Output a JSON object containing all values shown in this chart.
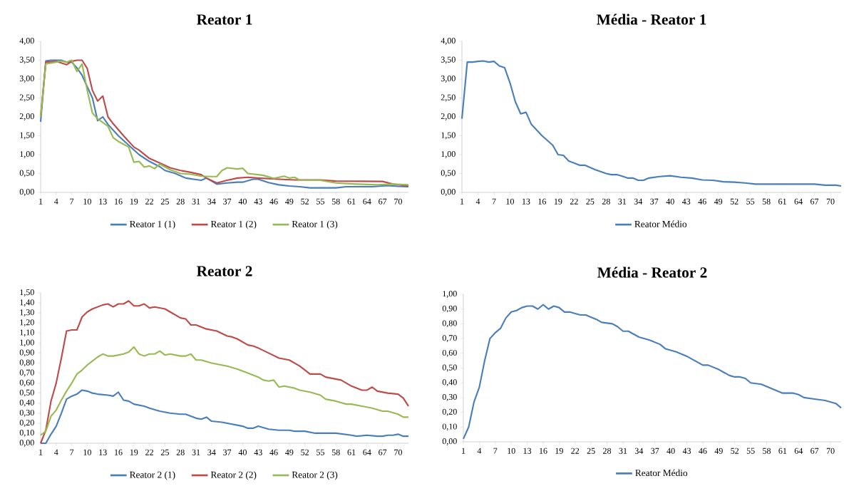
{
  "chart_data": [
    {
      "type": "line",
      "title": "Reator 1",
      "xlim": [
        1,
        72
      ],
      "xticks": [
        1,
        4,
        7,
        10,
        13,
        16,
        19,
        22,
        25,
        28,
        31,
        34,
        37,
        40,
        43,
        46,
        49,
        52,
        55,
        58,
        61,
        64,
        67,
        70
      ],
      "ylim": [
        0,
        4
      ],
      "yticks": [
        {
          "value": 0,
          "label": "0,00"
        },
        {
          "value": 0.5,
          "label": "0,50"
        },
        {
          "value": 1,
          "label": "1,00"
        },
        {
          "value": 1.5,
          "label": "1,50"
        },
        {
          "value": 2,
          "label": "2,00"
        },
        {
          "value": 2.5,
          "label": "2,50"
        },
        {
          "value": 3,
          "label": "3,00"
        },
        {
          "value": 3.5,
          "label": "3,50"
        },
        {
          "value": 4,
          "label": "4,00"
        }
      ],
      "legend": "bottom",
      "series": [
        {
          "name": "Reator 1 (1)",
          "color": "#4a7ebb",
          "x": [
            1,
            2,
            3,
            4,
            5,
            6,
            7,
            8,
            9,
            10,
            11,
            12,
            13,
            14,
            16,
            18,
            20,
            22,
            24,
            25,
            27,
            29,
            31,
            32,
            33,
            35,
            37,
            39,
            40,
            42,
            43,
            45,
            47,
            49,
            51,
            53,
            58,
            60,
            65,
            68,
            70,
            72
          ],
          "values": [
            1.87,
            3.48,
            3.5,
            3.5,
            3.5,
            3.45,
            3.45,
            3.3,
            3.1,
            2.8,
            2.5,
            1.9,
            2.0,
            1.8,
            1.5,
            1.25,
            1.0,
            0.82,
            0.68,
            0.58,
            0.5,
            0.38,
            0.34,
            0.32,
            0.38,
            0.22,
            0.25,
            0.27,
            0.27,
            0.35,
            0.35,
            0.26,
            0.2,
            0.17,
            0.15,
            0.12,
            0.12,
            0.15,
            0.15,
            0.18,
            0.16,
            0.15
          ]
        },
        {
          "name": "Reator 1 (2)",
          "color": "#be4b48",
          "x": [
            1,
            2,
            4,
            6,
            7,
            8,
            9,
            10,
            11,
            12,
            13,
            14,
            15,
            17,
            19,
            20,
            22,
            24,
            26,
            28,
            30,
            32,
            33,
            35,
            37,
            39,
            41,
            43,
            47,
            50,
            55,
            58,
            67,
            69,
            72
          ],
          "values": [
            2.0,
            3.45,
            3.47,
            3.38,
            3.47,
            3.5,
            3.5,
            3.28,
            2.7,
            2.42,
            2.55,
            2.0,
            1.82,
            1.5,
            1.2,
            1.12,
            0.9,
            0.78,
            0.65,
            0.58,
            0.53,
            0.47,
            0.38,
            0.25,
            0.32,
            0.38,
            0.4,
            0.38,
            0.35,
            0.33,
            0.33,
            0.3,
            0.29,
            0.22,
            0.17
          ]
        },
        {
          "name": "Reator 1 (3)",
          "color": "#98b954",
          "x": [
            1,
            2,
            4,
            5,
            6,
            7,
            8,
            9,
            10,
            11,
            12,
            13,
            14,
            15,
            16,
            18,
            19,
            20,
            21,
            22,
            23,
            24,
            26,
            28,
            30,
            32,
            34,
            35,
            36,
            37,
            39,
            40,
            41,
            43,
            44,
            46,
            48,
            49,
            50,
            51,
            55,
            58,
            62,
            66,
            69,
            72
          ],
          "values": [
            2.0,
            3.4,
            3.45,
            3.48,
            3.45,
            3.5,
            3.2,
            3.4,
            2.7,
            2.1,
            1.95,
            1.85,
            1.75,
            1.45,
            1.35,
            1.2,
            0.8,
            0.82,
            0.67,
            0.7,
            0.63,
            0.75,
            0.6,
            0.5,
            0.48,
            0.43,
            0.42,
            0.42,
            0.58,
            0.65,
            0.62,
            0.64,
            0.5,
            0.47,
            0.45,
            0.37,
            0.43,
            0.38,
            0.4,
            0.33,
            0.32,
            0.25,
            0.22,
            0.2,
            0.22,
            0.2
          ]
        }
      ]
    },
    {
      "type": "line",
      "title": "Média - Reator 1",
      "xlim": [
        1,
        72
      ],
      "xticks": [
        1,
        4,
        7,
        10,
        13,
        16,
        19,
        22,
        25,
        28,
        31,
        34,
        37,
        40,
        43,
        46,
        49,
        52,
        55,
        58,
        61,
        64,
        67,
        70
      ],
      "ylim": [
        0,
        4
      ],
      "yticks": [
        {
          "value": 0,
          "label": "0,00"
        },
        {
          "value": 0.5,
          "label": "0,50"
        },
        {
          "value": 1,
          "label": "1,00"
        },
        {
          "value": 1.5,
          "label": "1,50"
        },
        {
          "value": 2,
          "label": "2,00"
        },
        {
          "value": 2.5,
          "label": "2,50"
        },
        {
          "value": 3,
          "label": "3,00"
        },
        {
          "value": 3.5,
          "label": "3,50"
        },
        {
          "value": 4,
          "label": "4,00"
        }
      ],
      "legend": "bottom",
      "series": [
        {
          "name": "Reator Médio",
          "color": "#4a7ebb",
          "x": [
            1,
            2,
            3,
            4,
            5,
            6,
            7,
            8,
            9,
            10,
            11,
            12,
            13,
            14,
            16,
            18,
            19,
            20,
            21,
            22,
            23,
            24,
            26,
            28,
            29,
            30,
            31,
            32,
            33,
            34,
            35,
            36,
            38,
            40,
            42,
            44,
            46,
            48,
            50,
            52,
            54,
            56,
            67,
            69,
            71,
            72
          ],
          "values": [
            1.95,
            3.45,
            3.45,
            3.47,
            3.48,
            3.45,
            3.47,
            3.35,
            3.3,
            2.9,
            2.4,
            2.08,
            2.12,
            1.8,
            1.5,
            1.25,
            1.0,
            0.98,
            0.83,
            0.78,
            0.72,
            0.72,
            0.6,
            0.5,
            0.47,
            0.47,
            0.43,
            0.38,
            0.38,
            0.32,
            0.32,
            0.38,
            0.42,
            0.44,
            0.4,
            0.38,
            0.33,
            0.32,
            0.28,
            0.27,
            0.25,
            0.22,
            0.22,
            0.19,
            0.19,
            0.17
          ]
        }
      ]
    },
    {
      "type": "line",
      "title": "Reator 2",
      "xlim": [
        1,
        72
      ],
      "xticks": [
        1,
        4,
        7,
        10,
        13,
        16,
        19,
        22,
        25,
        28,
        31,
        34,
        37,
        40,
        43,
        46,
        49,
        52,
        55,
        58,
        61,
        64,
        67,
        70
      ],
      "ylim": [
        0,
        1.5
      ],
      "yticks": [
        {
          "value": 0,
          "label": "0,00"
        },
        {
          "value": 0.1,
          "label": "0,10"
        },
        {
          "value": 0.2,
          "label": "0,20"
        },
        {
          "value": 0.3,
          "label": "0,30"
        },
        {
          "value": 0.4,
          "label": "0,40"
        },
        {
          "value": 0.5,
          "label": "0,50"
        },
        {
          "value": 0.6,
          "label": "0,60"
        },
        {
          "value": 0.7,
          "label": "0,70"
        },
        {
          "value": 0.8,
          "label": "0,80"
        },
        {
          "value": 0.9,
          "label": "0,90"
        },
        {
          "value": 1,
          "label": "1,00"
        },
        {
          "value": 1.1,
          "label": "1,10"
        },
        {
          "value": 1.2,
          "label": "1,20"
        },
        {
          "value": 1.3,
          "label": "1,30"
        },
        {
          "value": 1.4,
          "label": "1,40"
        },
        {
          "value": 1.5,
          "label": "1,50"
        }
      ],
      "legend": "bottom",
      "series": [
        {
          "name": "Reator 2 (1)",
          "color": "#4a7ebb",
          "x": [
            1,
            2,
            3,
            4,
            5,
            6,
            7,
            8,
            9,
            10,
            11,
            12,
            14,
            15,
            16,
            17,
            18,
            19,
            21,
            22,
            24,
            26,
            28,
            29,
            31,
            32,
            33,
            34,
            36,
            38,
            40,
            41,
            42,
            43,
            45,
            47,
            49,
            50,
            52,
            54,
            58,
            61,
            62,
            64,
            66,
            67,
            68,
            69,
            70,
            71,
            72
          ],
          "values": [
            0,
            0,
            0.09,
            0.17,
            0.3,
            0.44,
            0.47,
            0.49,
            0.53,
            0.52,
            0.5,
            0.49,
            0.48,
            0.47,
            0.51,
            0.43,
            0.42,
            0.39,
            0.37,
            0.35,
            0.32,
            0.3,
            0.29,
            0.29,
            0.25,
            0.24,
            0.26,
            0.22,
            0.21,
            0.19,
            0.17,
            0.15,
            0.15,
            0.17,
            0.14,
            0.13,
            0.13,
            0.12,
            0.12,
            0.1,
            0.1,
            0.08,
            0.07,
            0.08,
            0.07,
            0.07,
            0.08,
            0.08,
            0.09,
            0.07,
            0.07
          ]
        },
        {
          "name": "Reator 2 (2)",
          "color": "#be4b48",
          "x": [
            1,
            2,
            3,
            4,
            5,
            6,
            7,
            8,
            9,
            10,
            11,
            12,
            13,
            14,
            15,
            16,
            17,
            18,
            19,
            20,
            21,
            22,
            23,
            25,
            26,
            28,
            29,
            30,
            31,
            33,
            35,
            37,
            38,
            39,
            41,
            42,
            43,
            45,
            47,
            49,
            51,
            53,
            55,
            56,
            59,
            61,
            63,
            64,
            65,
            66,
            68,
            70,
            71,
            72
          ],
          "values": [
            0,
            0.13,
            0.42,
            0.6,
            0.85,
            1.12,
            1.13,
            1.13,
            1.26,
            1.31,
            1.34,
            1.36,
            1.38,
            1.39,
            1.36,
            1.39,
            1.39,
            1.42,
            1.37,
            1.37,
            1.39,
            1.35,
            1.36,
            1.34,
            1.31,
            1.25,
            1.24,
            1.18,
            1.18,
            1.14,
            1.12,
            1.07,
            1.06,
            1.04,
            0.98,
            0.97,
            0.95,
            0.9,
            0.85,
            0.83,
            0.77,
            0.69,
            0.69,
            0.66,
            0.63,
            0.57,
            0.53,
            0.53,
            0.56,
            0.52,
            0.5,
            0.49,
            0.45,
            0.37
          ]
        },
        {
          "name": "Reator 2 (3)",
          "color": "#98b954",
          "x": [
            1,
            2,
            3,
            4,
            5,
            6,
            7,
            8,
            9,
            10,
            11,
            12,
            13,
            14,
            15,
            17,
            18,
            19,
            20,
            21,
            22,
            23,
            24,
            25,
            26,
            28,
            29,
            30,
            31,
            32,
            34,
            37,
            39,
            41,
            43,
            44,
            45,
            46,
            47,
            48,
            50,
            51,
            53,
            55,
            56,
            58,
            60,
            61,
            63,
            65,
            67,
            68,
            70,
            71,
            72
          ],
          "values": [
            0.08,
            0.12,
            0.27,
            0.33,
            0.43,
            0.52,
            0.6,
            0.69,
            0.73,
            0.78,
            0.82,
            0.86,
            0.89,
            0.87,
            0.87,
            0.89,
            0.91,
            0.96,
            0.89,
            0.87,
            0.89,
            0.89,
            0.92,
            0.88,
            0.89,
            0.87,
            0.87,
            0.89,
            0.83,
            0.83,
            0.8,
            0.77,
            0.74,
            0.7,
            0.66,
            0.63,
            0.62,
            0.63,
            0.56,
            0.57,
            0.55,
            0.53,
            0.51,
            0.48,
            0.44,
            0.42,
            0.39,
            0.39,
            0.37,
            0.35,
            0.32,
            0.32,
            0.29,
            0.26,
            0.26
          ]
        }
      ]
    },
    {
      "type": "line",
      "title": "Média - Reator 2",
      "xlim": [
        1,
        72
      ],
      "xticks": [
        1,
        4,
        7,
        10,
        13,
        16,
        19,
        22,
        25,
        28,
        31,
        34,
        37,
        40,
        43,
        46,
        49,
        52,
        55,
        58,
        61,
        64,
        67,
        70
      ],
      "ylim": [
        0,
        1
      ],
      "yticks": [
        {
          "value": 0,
          "label": "0,00"
        },
        {
          "value": 0.1,
          "label": "0,10"
        },
        {
          "value": 0.2,
          "label": "0,20"
        },
        {
          "value": 0.3,
          "label": "0,30"
        },
        {
          "value": 0.4,
          "label": "0,40"
        },
        {
          "value": 0.5,
          "label": "0,50"
        },
        {
          "value": 0.6,
          "label": "0,60"
        },
        {
          "value": 0.7,
          "label": "0,70"
        },
        {
          "value": 0.8,
          "label": "0,80"
        },
        {
          "value": 0.9,
          "label": "0,90"
        },
        {
          "value": 1,
          "label": "1,00"
        }
      ],
      "legend": "bottom",
      "series": [
        {
          "name": "Reator Médio",
          "color": "#4a7ebb",
          "x": [
            1,
            2,
            3,
            4,
            5,
            6,
            7,
            8,
            9,
            10,
            11,
            12,
            13,
            14,
            15,
            16,
            17,
            18,
            19,
            20,
            21,
            22,
            23,
            24,
            26,
            27,
            29,
            30,
            31,
            32,
            34,
            36,
            38,
            39,
            41,
            43,
            44,
            46,
            47,
            49,
            50,
            51,
            52,
            53,
            54,
            55,
            57,
            59,
            61,
            62,
            63,
            64,
            65,
            67,
            69,
            70,
            71,
            72
          ],
          "values": [
            0.02,
            0.1,
            0.27,
            0.37,
            0.55,
            0.7,
            0.74,
            0.77,
            0.84,
            0.88,
            0.89,
            0.91,
            0.92,
            0.92,
            0.9,
            0.93,
            0.9,
            0.92,
            0.91,
            0.88,
            0.88,
            0.87,
            0.86,
            0.86,
            0.83,
            0.81,
            0.8,
            0.78,
            0.75,
            0.75,
            0.71,
            0.69,
            0.66,
            0.63,
            0.61,
            0.58,
            0.56,
            0.52,
            0.52,
            0.49,
            0.47,
            0.45,
            0.44,
            0.44,
            0.43,
            0.4,
            0.39,
            0.36,
            0.33,
            0.33,
            0.33,
            0.32,
            0.3,
            0.29,
            0.28,
            0.27,
            0.26,
            0.23
          ]
        }
      ]
    }
  ]
}
